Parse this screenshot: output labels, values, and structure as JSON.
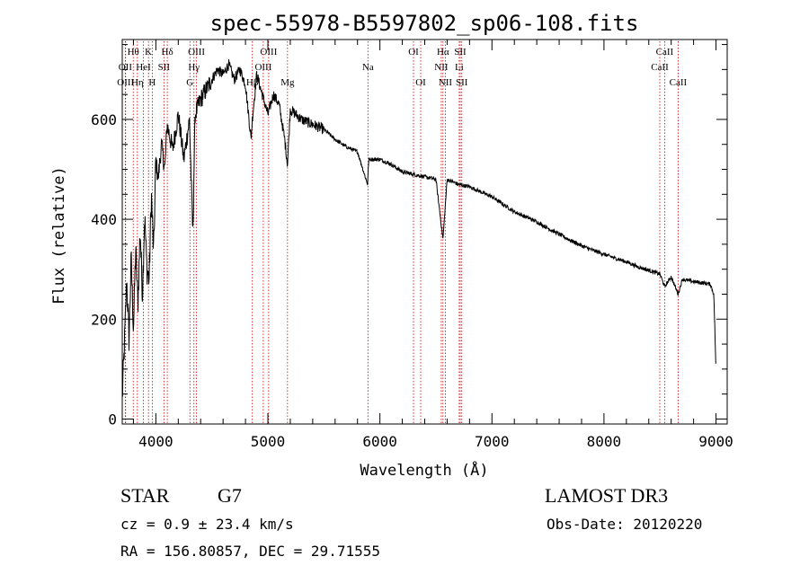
{
  "chart_data": {
    "type": "line",
    "title": "spec-55978-B5597802_sp06-108.fits",
    "xlabel": "Wavelength (Å)",
    "ylabel": "Flux (relative)",
    "xlim": [
      3700,
      9100
    ],
    "ylim": [
      -10,
      760
    ],
    "xticks": [
      4000,
      5000,
      6000,
      7000,
      8000,
      9000
    ],
    "xtick_labels": [
      "4000",
      "5000",
      "6000",
      "7000",
      "8000",
      "9000"
    ],
    "yticks": [
      0,
      200,
      400,
      600
    ],
    "ytick_labels": [
      "0",
      "200",
      "400",
      "600"
    ],
    "line_color": "#000000",
    "marker_color": "#cc0000",
    "spectrum": {
      "x": [
        3700,
        3720,
        3740,
        3760,
        3780,
        3800,
        3820,
        3840,
        3860,
        3880,
        3900,
        3920,
        3940,
        3960,
        3980,
        4000,
        4020,
        4050,
        4080,
        4100,
        4150,
        4200,
        4250,
        4300,
        4330,
        4350,
        4400,
        4450,
        4500,
        4550,
        4600,
        4650,
        4700,
        4750,
        4800,
        4850,
        4861,
        4900,
        4950,
        5000,
        5050,
        5100,
        5150,
        5175,
        5200,
        5300,
        5400,
        5500,
        5600,
        5700,
        5800,
        5890,
        5900,
        6000,
        6100,
        6200,
        6300,
        6400,
        6500,
        6563,
        6600,
        6700,
        6800,
        6900,
        7000,
        7100,
        7200,
        7300,
        7400,
        7500,
        7600,
        7700,
        7800,
        7900,
        8000,
        8100,
        8200,
        8300,
        8400,
        8500,
        8542,
        8600,
        8662,
        8700,
        8800,
        8900,
        8950,
        8980,
        8990,
        9000
      ],
      "y": [
        40,
        150,
        280,
        160,
        320,
        180,
        340,
        230,
        380,
        250,
        410,
        300,
        280,
        450,
        330,
        520,
        480,
        550,
        500,
        590,
        540,
        610,
        520,
        600,
        370,
        610,
        640,
        660,
        680,
        700,
        690,
        710,
        680,
        700,
        670,
        560,
        600,
        690,
        650,
        610,
        650,
        630,
        560,
        510,
        620,
        600,
        590,
        580,
        560,
        545,
        535,
        470,
        520,
        520,
        510,
        495,
        490,
        485,
        480,
        360,
        480,
        470,
        465,
        455,
        445,
        430,
        415,
        405,
        395,
        382,
        370,
        358,
        347,
        338,
        330,
        322,
        315,
        305,
        298,
        290,
        265,
        285,
        250,
        280,
        275,
        272,
        270,
        250,
        180,
        90
      ]
    },
    "lines": [
      {
        "label": "Hθ",
        "wave": 3798,
        "row": 0
      },
      {
        "label": "OII",
        "wave": 3727,
        "row": 1
      },
      {
        "label": "OIII",
        "wave": 3730,
        "row": 2
      },
      {
        "label": "Hη",
        "wave": 3835,
        "row": 2
      },
      {
        "label": "HeI",
        "wave": 3889,
        "row": 1
      },
      {
        "label": "K",
        "wave": 3934,
        "row": 0
      },
      {
        "label": "SII",
        "wave": 4072,
        "row": 1
      },
      {
        "label": "H",
        "wave": 3968,
        "row": 2
      },
      {
        "label": "Hδ",
        "wave": 4102,
        "row": 0
      },
      {
        "label": "OIII",
        "wave": 4363,
        "row": 0
      },
      {
        "label": "Hγ",
        "wave": 4340,
        "row": 1
      },
      {
        "label": "G",
        "wave": 4304,
        "row": 2
      },
      {
        "label": "Hβ",
        "wave": 4861,
        "row": 2
      },
      {
        "label": "OIII",
        "wave": 5007,
        "row": 0
      },
      {
        "label": "OIII",
        "wave": 4959,
        "row": 1
      },
      {
        "label": "Mg",
        "wave": 5175,
        "row": 2
      },
      {
        "label": "Na",
        "wave": 5893,
        "row": 1
      },
      {
        "label": "OI",
        "wave": 6300,
        "row": 0
      },
      {
        "label": "OI",
        "wave": 6364,
        "row": 2
      },
      {
        "label": "Hα",
        "wave": 6563,
        "row": 0
      },
      {
        "label": "NII",
        "wave": 6548,
        "row": 1
      },
      {
        "label": "NII",
        "wave": 6584,
        "row": 2
      },
      {
        "label": "SII",
        "wave": 6717,
        "row": 0
      },
      {
        "label": "Li",
        "wave": 6708,
        "row": 1
      },
      {
        "label": "SII",
        "wave": 6731,
        "row": 2
      },
      {
        "label": "CaII",
        "wave": 8542,
        "row": 0
      },
      {
        "label": "CaII",
        "wave": 8498,
        "row": 1
      },
      {
        "label": "CaII",
        "wave": 8662,
        "row": 2
      }
    ]
  },
  "info": {
    "class": "STAR",
    "subclass": "G7",
    "survey": "LAMOST DR3",
    "cz": "cz = 0.9 ± 23.4 km/s",
    "obs_date": "Obs-Date: 20120220",
    "radec": "RA = 156.80857, DEC =  29.71555"
  }
}
